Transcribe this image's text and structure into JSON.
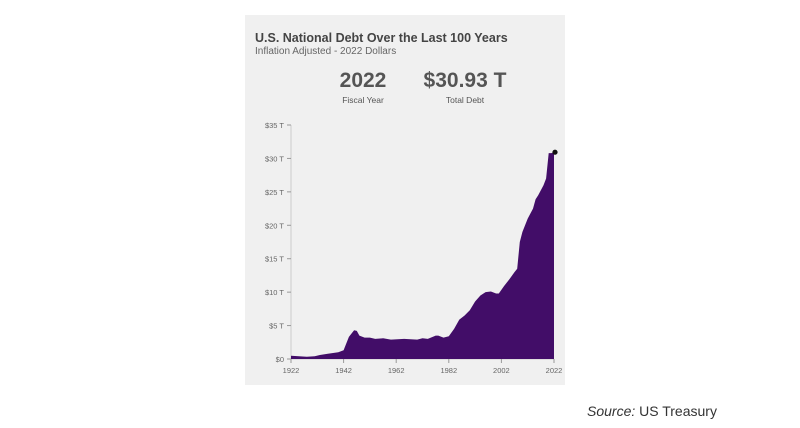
{
  "chart_data": {
    "type": "area",
    "title": "U.S. National Debt Over the Last 100 Years",
    "subtitle": "Inflation Adjusted - 2022 Dollars",
    "highlight": {
      "year": "2022",
      "year_label": "Fiscal Year",
      "value": "$30.93 T",
      "value_label": "Total Debt"
    },
    "xlabel": "",
    "ylabel": "",
    "xlim": [
      1922,
      2022
    ],
    "ylim": [
      0,
      35
    ],
    "x_ticks": [
      "1922",
      "1942",
      "1962",
      "1982",
      "2002",
      "2022"
    ],
    "y_ticks": [
      "$0",
      "$5 T",
      "$10 T",
      "$15 T",
      "$20 T",
      "$25 T",
      "$30 T",
      "$35 T"
    ],
    "color": "#420d68",
    "x": [
      1922,
      1925,
      1928,
      1931,
      1933,
      1936,
      1940,
      1942,
      1944,
      1946,
      1947,
      1948,
      1950,
      1952,
      1954,
      1957,
      1960,
      1965,
      1970,
      1972,
      1974,
      1977,
      1978,
      1980,
      1982,
      1984,
      1986,
      1988,
      1990,
      1992,
      1994,
      1996,
      1998,
      2000,
      2001,
      2003,
      2005,
      2007,
      2008,
      2009,
      2010,
      2012,
      2014,
      2015,
      2016,
      2018,
      2019,
      2020,
      2021,
      2022
    ],
    "values": [
      0.5,
      0.4,
      0.35,
      0.4,
      0.6,
      0.8,
      1.0,
      1.3,
      3.3,
      4.3,
      4.2,
      3.5,
      3.2,
      3.2,
      3.0,
      3.1,
      2.9,
      3.0,
      2.9,
      3.1,
      3.0,
      3.5,
      3.5,
      3.2,
      3.4,
      4.5,
      5.9,
      6.5,
      7.3,
      8.6,
      9.5,
      10.0,
      10.1,
      9.8,
      9.8,
      10.9,
      11.9,
      13.0,
      13.5,
      17.5,
      19.0,
      21.0,
      22.5,
      23.9,
      24.5,
      26.0,
      27.0,
      30.8,
      30.8,
      30.93
    ]
  },
  "source": {
    "label": "Source:",
    "value": "US Treasury"
  }
}
